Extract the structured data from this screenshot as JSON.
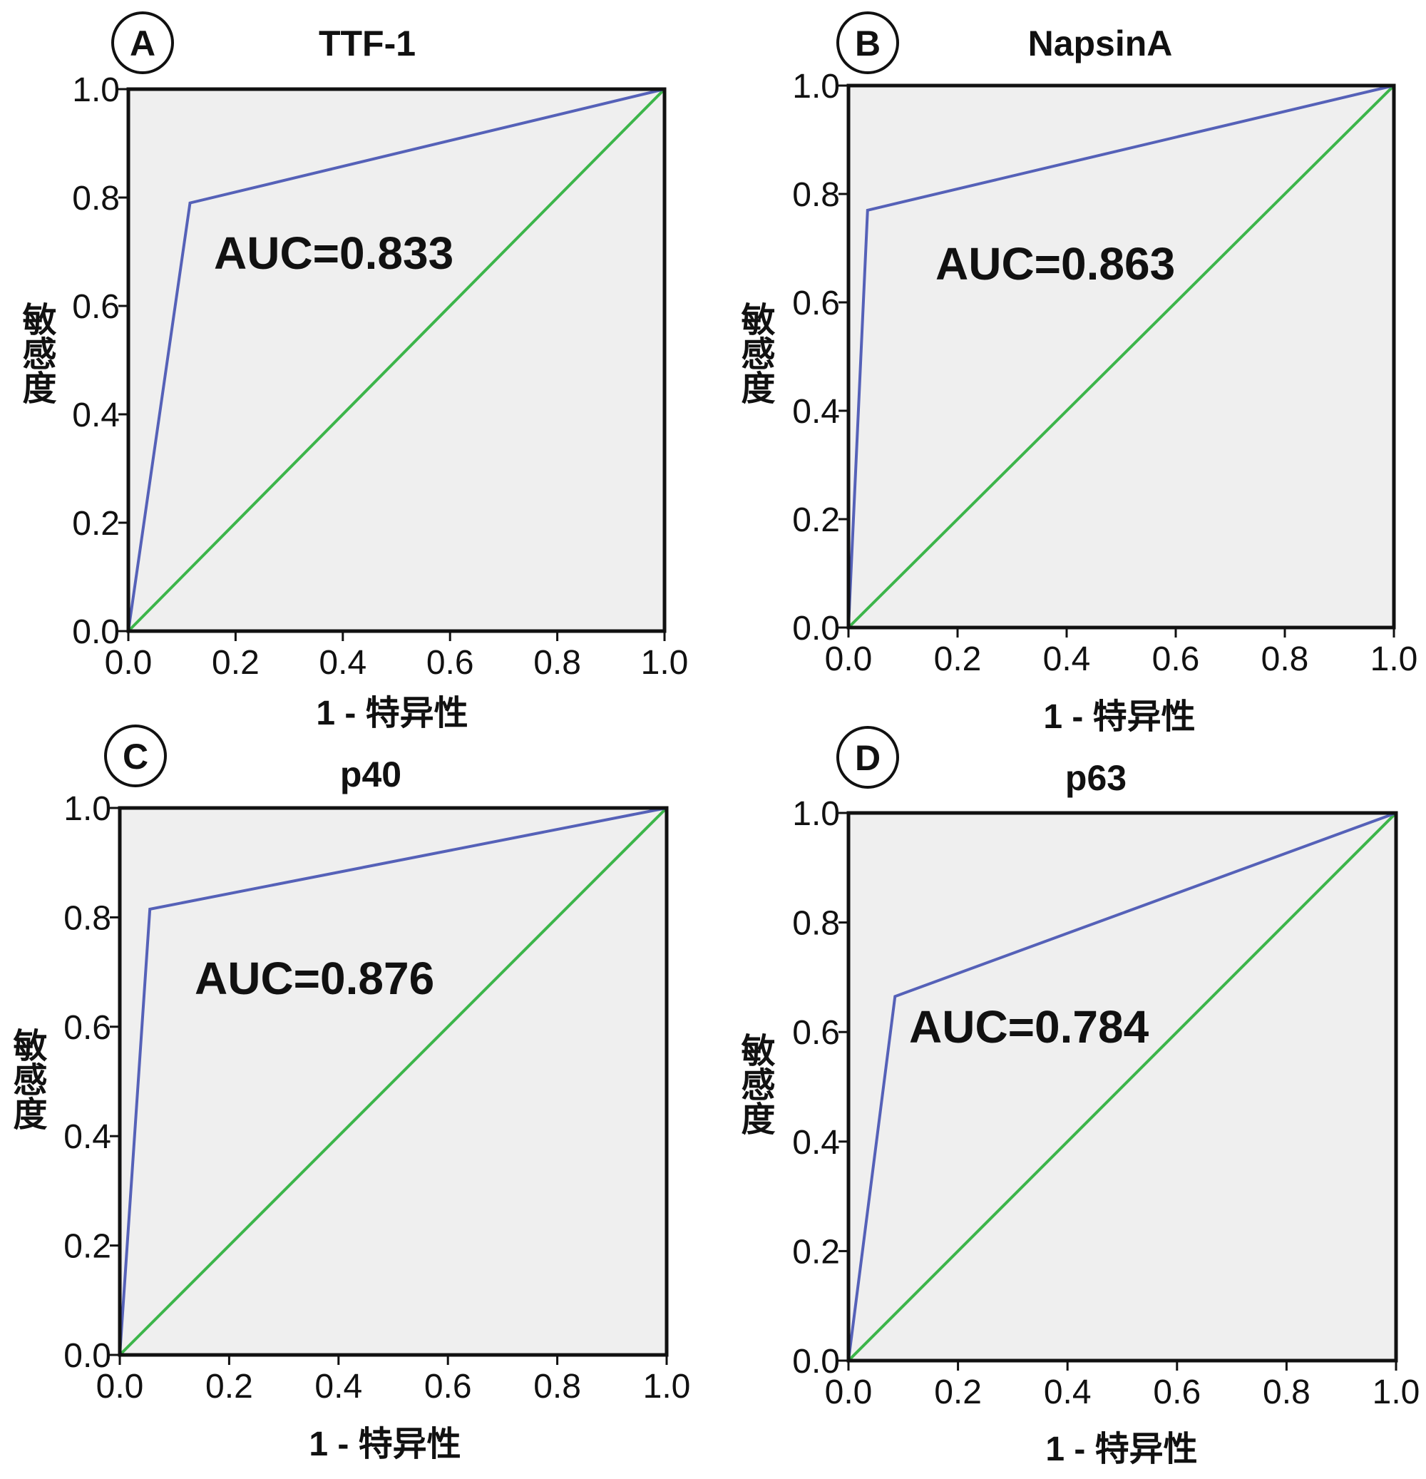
{
  "chart_data": [
    {
      "type": "line",
      "panel": "A",
      "title": "TTF-1",
      "xlabel": "1 - 特异性",
      "ylabel": "敏感度",
      "annotation": "AUC=0.833",
      "xlim": [
        0,
        1
      ],
      "ylim": [
        0,
        1
      ],
      "xticks": [
        "0.0",
        "0.2",
        "0.4",
        "0.6",
        "0.8",
        "1.0"
      ],
      "yticks": [
        "0.0",
        "0.2",
        "0.4",
        "0.6",
        "0.8",
        "1.0"
      ],
      "series": [
        {
          "color": "#5561b8",
          "x": [
            0.0,
            0.115,
            1.0
          ],
          "y": [
            0.0,
            0.79,
            1.0
          ]
        },
        {
          "color": "#3cb54a",
          "x": [
            0.0,
            1.0
          ],
          "y": [
            0.0,
            1.0
          ]
        }
      ]
    },
    {
      "type": "line",
      "panel": "B",
      "title": "NapsinA",
      "xlabel": "1 - 特异性",
      "ylabel": "敏感度",
      "annotation": "AUC=0.863",
      "xlim": [
        0,
        1
      ],
      "ylim": [
        0,
        1
      ],
      "xticks": [
        "0.0",
        "0.2",
        "0.4",
        "0.6",
        "0.8",
        "1.0"
      ],
      "yticks": [
        "0.0",
        "0.2",
        "0.4",
        "0.6",
        "0.8",
        "1.0"
      ],
      "series": [
        {
          "color": "#5561b8",
          "x": [
            0.0,
            0.035,
            1.0
          ],
          "y": [
            0.0,
            0.77,
            1.0
          ]
        },
        {
          "color": "#3cb54a",
          "x": [
            0.0,
            1.0
          ],
          "y": [
            0.0,
            1.0
          ]
        }
      ]
    },
    {
      "type": "line",
      "panel": "C",
      "title": "p40",
      "xlabel": "1 - 特异性",
      "ylabel": "敏感度",
      "annotation": "AUC=0.876",
      "xlim": [
        0,
        1
      ],
      "ylim": [
        0,
        1
      ],
      "xticks": [
        "0.0",
        "0.2",
        "0.4",
        "0.6",
        "0.8",
        "1.0"
      ],
      "yticks": [
        "0.0",
        "0.2",
        "0.4",
        "0.6",
        "0.8",
        "1.0"
      ],
      "series": [
        {
          "color": "#5561b8",
          "x": [
            0.0,
            0.055,
            1.0
          ],
          "y": [
            0.0,
            0.815,
            1.0
          ]
        },
        {
          "color": "#3cb54a",
          "x": [
            0.0,
            1.0
          ],
          "y": [
            0.0,
            1.0
          ]
        }
      ]
    },
    {
      "type": "line",
      "panel": "D",
      "title": "p63",
      "xlabel": "1 - 特异性",
      "ylabel": "敏感度",
      "annotation": "AUC=0.784",
      "xlim": [
        0,
        1
      ],
      "ylim": [
        0,
        1
      ],
      "xticks": [
        "0.0",
        "0.2",
        "0.4",
        "0.6",
        "0.8",
        "1.0"
      ],
      "yticks": [
        "0.0",
        "0.2",
        "0.4",
        "0.6",
        "0.8",
        "1.0"
      ],
      "series": [
        {
          "color": "#5561b8",
          "x": [
            0.0,
            0.085,
            1.0
          ],
          "y": [
            0.0,
            0.665,
            1.0
          ]
        },
        {
          "color": "#3cb54a",
          "x": [
            0.0,
            1.0
          ],
          "y": [
            0.0,
            1.0
          ]
        }
      ]
    }
  ]
}
